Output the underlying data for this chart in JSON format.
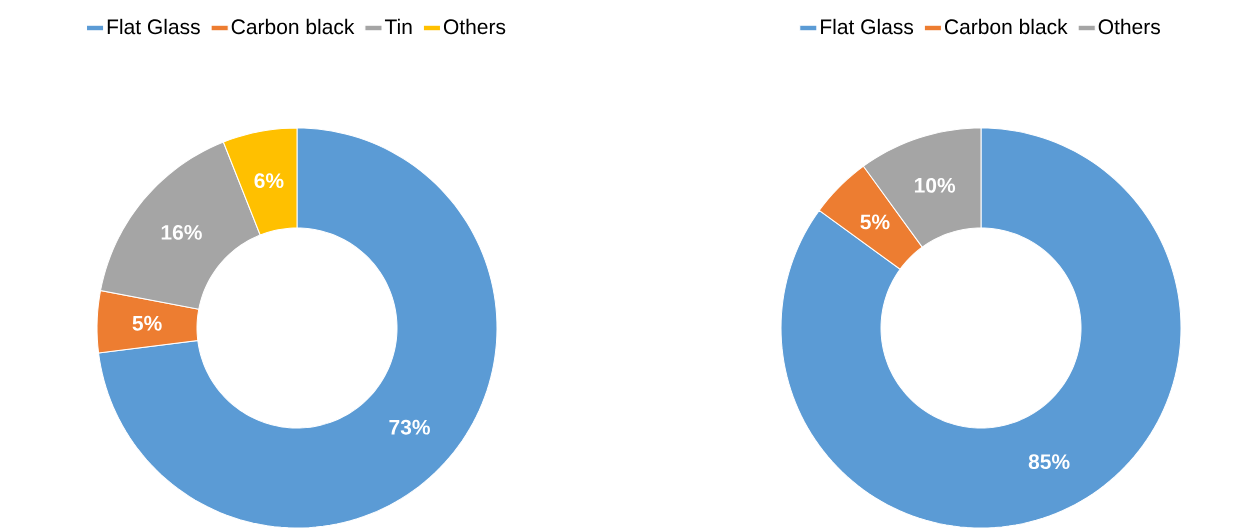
{
  "chart_data": [
    {
      "type": "donut",
      "categories": [
        "Flat Glass",
        "Carbon black",
        "Tin",
        "Others"
      ],
      "values": [
        73,
        5,
        16,
        6
      ],
      "colors": [
        "#5b9bd5",
        "#ed7d31",
        "#a5a5a5",
        "#ffc000"
      ],
      "value_labels": [
        "73%",
        "5%",
        "16%",
        "6%"
      ],
      "legend": "top"
    },
    {
      "type": "donut",
      "categories": [
        "Flat Glass",
        "Carbon black",
        "Others"
      ],
      "values": [
        85,
        5,
        10
      ],
      "colors": [
        "#5b9bd5",
        "#ed7d31",
        "#a5a5a5"
      ],
      "value_labels": [
        "85%",
        "5%",
        "10%"
      ],
      "legend": "top"
    }
  ]
}
